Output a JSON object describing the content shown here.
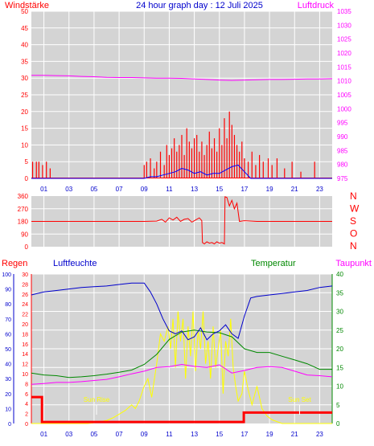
{
  "title": "24 hour graph day : 12 Juli 2025",
  "colors": {
    "background": "#ffffff",
    "panel": "#d4d4d4",
    "grid": "#ffffff",
    "wind": "#ff0000",
    "gust": "#0000ff",
    "pressure": "#ff00ff",
    "direction": "#ff0000",
    "humidity": "#0000cc",
    "temperature": "#008800",
    "dewpoint": "#ff00ff",
    "rain": "#ff0000",
    "solar": "#ffff00",
    "sun_label": "#ffff00"
  },
  "chart_data": [
    {
      "id": "wind-pressure",
      "type": "bar",
      "left_label": "Windstärke",
      "right_label": "Luftdruck",
      "x_ticks": [
        "01",
        "03",
        "05",
        "07",
        "09",
        "11",
        "13",
        "15",
        "17",
        "19",
        "21",
        "23"
      ],
      "x_tick_hours": [
        1,
        3,
        5,
        7,
        9,
        11,
        13,
        15,
        17,
        19,
        21,
        23
      ],
      "xlim": [
        0,
        24
      ],
      "y_left": {
        "range": [
          0,
          50
        ],
        "ticks": [
          "0",
          "5",
          "10",
          "15",
          "20",
          "25",
          "30",
          "35",
          "40",
          "45",
          "50"
        ]
      },
      "y_right": {
        "range": [
          975,
          1035
        ],
        "ticks": [
          "975",
          "980",
          "985",
          "990",
          "995",
          "1000",
          "1005",
          "1010",
          "1015",
          "1020",
          "1025",
          "1030",
          "1035"
        ]
      },
      "wind_speed_hours": [
        0.1,
        0.4,
        0.6,
        0.9,
        1.2,
        1.5,
        9.0,
        9.2,
        9.5,
        9.8,
        10.0,
        10.3,
        10.6,
        10.8,
        11.0,
        11.2,
        11.4,
        11.6,
        11.8,
        12.0,
        12.2,
        12.4,
        12.6,
        12.8,
        13.0,
        13.2,
        13.4,
        13.6,
        13.8,
        14.0,
        14.2,
        14.4,
        14.6,
        14.8,
        15.0,
        15.2,
        15.4,
        15.6,
        15.8,
        16.0,
        16.2,
        16.4,
        16.6,
        16.8,
        17.0,
        17.3,
        17.6,
        17.9,
        18.2,
        18.5,
        18.9,
        19.2,
        19.6,
        20.2,
        20.8,
        21.5,
        22.6
      ],
      "wind_speed_values": [
        5,
        5,
        5,
        4,
        5,
        3,
        4,
        5,
        6,
        3,
        5,
        8,
        4,
        10,
        7,
        9,
        12,
        8,
        10,
        13,
        7,
        15,
        11,
        9,
        12,
        13,
        8,
        11,
        7,
        10,
        14,
        9,
        12,
        8,
        15,
        10,
        18,
        12,
        20,
        16,
        13,
        10,
        8,
        11,
        6,
        5,
        8,
        4,
        7,
        5,
        6,
        4,
        6,
        3,
        5,
        2,
        5
      ],
      "gust_hours": [
        0,
        9.0,
        9.5,
        10.0,
        10.5,
        11.0,
        11.5,
        12.0,
        12.5,
        13.0,
        13.5,
        14.0,
        14.5,
        15.0,
        15.5,
        16.0,
        16.5,
        17.0,
        17.5,
        24.0
      ],
      "gust_values": [
        0,
        0,
        0.5,
        0.5,
        1,
        1.5,
        2,
        3,
        2.5,
        1.5,
        2,
        1,
        1.5,
        1.5,
        2.5,
        3.5,
        4,
        2,
        0,
        0
      ],
      "pressure_hours": [
        0,
        1,
        2,
        3,
        4,
        5,
        6,
        7,
        8,
        9,
        10,
        11,
        12,
        13,
        14,
        15,
        16,
        17,
        18,
        19,
        20,
        21,
        22,
        23,
        24
      ],
      "pressure_values": [
        1012.0,
        1012.0,
        1011.9,
        1011.8,
        1011.6,
        1011.5,
        1011.3,
        1011.2,
        1011.2,
        1011.1,
        1011.0,
        1011.0,
        1010.9,
        1010.7,
        1010.5,
        1010.3,
        1010.2,
        1010.3,
        1010.4,
        1010.5,
        1010.5,
        1010.6,
        1010.7,
        1010.7,
        1010.8
      ]
    },
    {
      "id": "wind-direction",
      "type": "line",
      "left_ticks": [
        "0",
        "90",
        "180",
        "270",
        "360"
      ],
      "ylim": [
        0,
        360
      ],
      "right_compass": [
        "N",
        "W",
        "S",
        "O",
        "N"
      ],
      "xlim": [
        0,
        24
      ],
      "x_tick_hours": [
        1,
        3,
        5,
        7,
        9,
        11,
        13,
        15,
        17,
        19,
        21,
        23
      ],
      "hours": [
        0,
        9.0,
        10.0,
        10.4,
        10.7,
        11.0,
        11.3,
        11.6,
        11.9,
        12.2,
        12.5,
        12.8,
        13.1,
        13.4,
        13.6,
        13.65,
        13.8,
        14.0,
        14.2,
        14.4,
        14.6,
        14.8,
        15.0,
        15.2,
        15.4,
        15.45,
        15.6,
        15.8,
        16.0,
        16.2,
        16.4,
        16.6,
        17.0,
        18.0,
        24.0
      ],
      "values": [
        180,
        180,
        182,
        195,
        175,
        205,
        190,
        210,
        180,
        195,
        200,
        175,
        190,
        205,
        185,
        30,
        20,
        35,
        25,
        30,
        20,
        35,
        25,
        30,
        20,
        355,
        350,
        290,
        330,
        270,
        310,
        180,
        185,
        180,
        180
      ]
    },
    {
      "id": "rain-humidity-temperature",
      "type": "line",
      "labels": {
        "rain": "Regen",
        "humidity": "Luftfeuchte",
        "temperature": "Temperatur",
        "dewpoint": "Taupunkt"
      },
      "humidity_axis": {
        "range": [
          0,
          100
        ],
        "ticks": [
          "0",
          "10",
          "20",
          "30",
          "40",
          "50",
          "60",
          "70",
          "80",
          "90",
          "100"
        ]
      },
      "rain_axis": {
        "range": [
          0,
          30
        ],
        "ticks": [
          "0",
          "2",
          "4",
          "6",
          "8",
          "10",
          "12",
          "14",
          "16",
          "18",
          "20",
          "22",
          "24",
          "26",
          "28",
          "30"
        ]
      },
      "temperature_axis": {
        "range": [
          0,
          40
        ],
        "ticks": [
          "0",
          "5",
          "10",
          "15",
          "20",
          "25",
          "30",
          "35",
          "40"
        ]
      },
      "x_ticks": [
        "01",
        "03",
        "05",
        "07",
        "09",
        "11",
        "13",
        "15",
        "17",
        "19",
        "21",
        "23"
      ],
      "x_tick_hours": [
        1,
        3,
        5,
        7,
        9,
        11,
        13,
        15,
        17,
        19,
        21,
        23
      ],
      "xlim": [
        0,
        24
      ],
      "humidity_hours": [
        0,
        1,
        2,
        3,
        4,
        5,
        6,
        7,
        8,
        9,
        9.5,
        10,
        10.5,
        11,
        11.5,
        12,
        12.5,
        13,
        13.5,
        14,
        14.5,
        15,
        15.5,
        16,
        16.5,
        17,
        17.5,
        18,
        19,
        20,
        21,
        22,
        23,
        24
      ],
      "humidity_values": [
        86,
        88,
        89,
        90,
        91,
        91.5,
        92,
        93,
        94,
        94,
        88,
        80,
        70,
        62,
        60,
        62,
        56,
        58,
        64,
        56,
        60,
        62,
        66,
        60,
        57,
        72,
        84,
        85,
        86,
        87,
        88,
        89,
        91,
        92
      ],
      "temperature_hours": [
        0,
        1,
        2,
        3,
        4,
        5,
        6,
        7,
        8,
        9,
        10,
        11,
        12,
        13,
        14,
        15,
        16,
        17,
        18,
        19,
        20,
        21,
        22,
        23,
        24
      ],
      "temperature_values": [
        13.5,
        13,
        12.8,
        12.3,
        12.5,
        12.8,
        13.2,
        13.7,
        14.3,
        15.8,
        18.5,
        22.5,
        24.5,
        25,
        24.5,
        24.3,
        23.2,
        20,
        19,
        19,
        18,
        17,
        16,
        14.5,
        14.5
      ],
      "dewpoint_hours": [
        0,
        1,
        2,
        3,
        4,
        5,
        6,
        7,
        8,
        9,
        10,
        11,
        12,
        13,
        14,
        15,
        16,
        17,
        18,
        19,
        20,
        21,
        22,
        23,
        24
      ],
      "dewpoint_values": [
        10.5,
        10.7,
        11,
        11,
        11.2,
        11.5,
        11.8,
        12.5,
        13.3,
        14,
        15,
        15.2,
        15.8,
        15.3,
        15,
        15.7,
        13.5,
        14.2,
        15,
        15.2,
        15,
        14,
        13,
        12.8,
        12.5
      ],
      "solar_hours": [
        0,
        4.5,
        5,
        5.5,
        6,
        6.5,
        7,
        7.5,
        8,
        8.3,
        8.6,
        9,
        9.3,
        9.6,
        10,
        10.3,
        10.6,
        10.9,
        11.1,
        11.3,
        11.5,
        11.7,
        11.9,
        12.1,
        12.3,
        12.5,
        12.7,
        12.9,
        13.1,
        13.3,
        13.5,
        13.7,
        13.9,
        14.1,
        14.3,
        14.5,
        14.7,
        14.9,
        15.1,
        15.3,
        15.5,
        15.7,
        15.9,
        16.1,
        16.3,
        16.5,
        16.8,
        17,
        17.3,
        17.6,
        18,
        18.4,
        18.8,
        19.2,
        20,
        24
      ],
      "solar_values": [
        0,
        0,
        0.2,
        0.5,
        0.8,
        1.5,
        2.5,
        3.5,
        5,
        4,
        6,
        10,
        12,
        7,
        16,
        24,
        22,
        26,
        20,
        28,
        15,
        30,
        22,
        28,
        12,
        26,
        18,
        30,
        14,
        25,
        20,
        30,
        16,
        22,
        12,
        26,
        15,
        20,
        25,
        8,
        22,
        18,
        28,
        15,
        10,
        6,
        8,
        14,
        9,
        5,
        10,
        4,
        2,
        1,
        0,
        0
      ],
      "rain_hours": [
        0,
        0.85,
        0.85,
        16.95,
        16.95,
        24
      ],
      "rain_values": [
        5.3,
        5.3,
        0.3,
        0.3,
        2.2,
        2.2
      ],
      "sunrise_label": "Sun Rise",
      "sunrise_hour": 5.2,
      "sunset_label": "Sun Set",
      "sunset_hour": 21.4
    }
  ]
}
